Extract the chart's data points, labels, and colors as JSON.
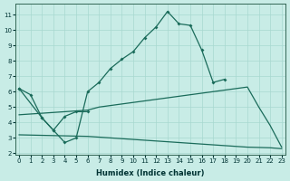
{
  "xlabel": "Humidex (Indice chaleur)",
  "bg_color": "#c8ece6",
  "grid_color": "#a8d8d0",
  "line_color": "#1a6b5a",
  "xlim": [
    -0.3,
    23.3
  ],
  "ylim": [
    1.9,
    11.7
  ],
  "yticks": [
    2,
    3,
    4,
    5,
    6,
    7,
    8,
    9,
    10,
    11
  ],
  "xticks": [
    0,
    1,
    2,
    3,
    4,
    5,
    6,
    7,
    8,
    9,
    10,
    11,
    12,
    13,
    14,
    15,
    16,
    17,
    18,
    19,
    20,
    21,
    22,
    23
  ],
  "line1_x": [
    0,
    1,
    2,
    3,
    4,
    5,
    6,
    7,
    8,
    9,
    10,
    11,
    12,
    13,
    14,
    15,
    16,
    17,
    18
  ],
  "line1_y": [
    6.2,
    5.8,
    4.3,
    3.5,
    2.7,
    3.0,
    6.0,
    6.6,
    7.5,
    8.1,
    8.6,
    9.5,
    10.2,
    11.2,
    10.4,
    10.3,
    8.7,
    6.6,
    6.8
  ],
  "line2_x": [
    0,
    2,
    3,
    4,
    5,
    6
  ],
  "line2_y": [
    6.2,
    4.3,
    3.5,
    4.4,
    4.7,
    4.7
  ],
  "line3_x": [
    0,
    6,
    7,
    8,
    9,
    10,
    11,
    12,
    13,
    14,
    15,
    16,
    17,
    18,
    19,
    20,
    21,
    22,
    23
  ],
  "line3_y": [
    4.5,
    4.8,
    5.0,
    5.1,
    5.2,
    5.3,
    5.4,
    5.5,
    5.6,
    5.7,
    5.8,
    5.9,
    6.0,
    6.1,
    6.2,
    6.3,
    5.0,
    3.8,
    2.4
  ],
  "line4_x": [
    0,
    6,
    7,
    8,
    9,
    10,
    11,
    12,
    13,
    14,
    15,
    16,
    17,
    18,
    19,
    20,
    21,
    22,
    23
  ],
  "line4_y": [
    3.2,
    3.1,
    3.05,
    3.0,
    2.95,
    2.9,
    2.85,
    2.8,
    2.75,
    2.7,
    2.65,
    2.6,
    2.55,
    2.5,
    2.45,
    2.4,
    2.38,
    2.36,
    2.3
  ]
}
